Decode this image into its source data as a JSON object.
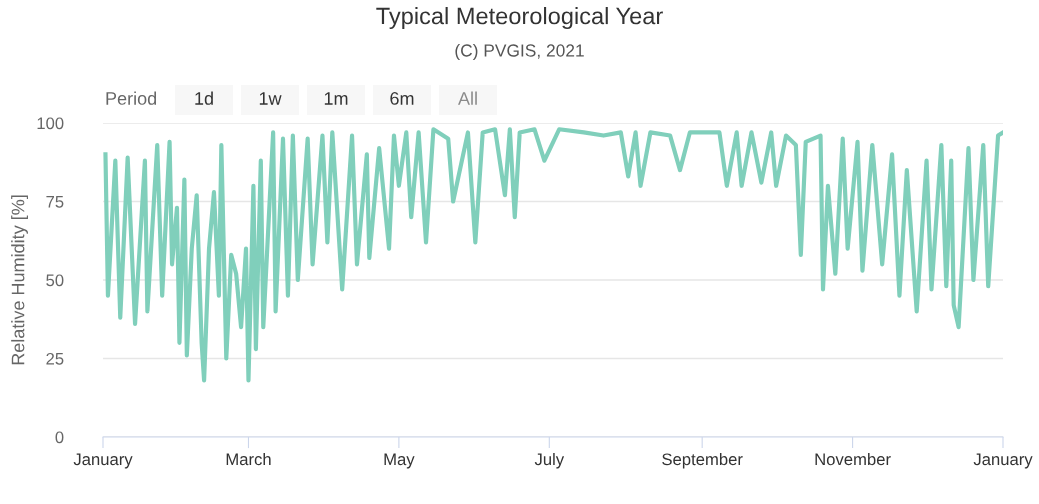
{
  "chart_data": {
    "type": "line",
    "title": "Typical Meteorological Year",
    "subtitle": "(C) PVGIS, 2021",
    "ylabel": "Relative Humidity [%]",
    "annotations": [
      "Period",
      "1d",
      "1w",
      "1m",
      "6m",
      "All"
    ],
    "xlim": [
      "2021-01-01",
      "2022-01-01"
    ],
    "xticks": [
      {
        "value": "2021-01-01",
        "label": "January"
      },
      {
        "value": "2021-03-01",
        "label": "March"
      },
      {
        "value": "2021-05-01",
        "label": "May"
      },
      {
        "value": "2021-07-01",
        "label": "July"
      },
      {
        "value": "2021-09-01",
        "label": "September"
      },
      {
        "value": "2021-11-01",
        "label": "November"
      },
      {
        "value": "2022-01-01",
        "label": "January"
      }
    ],
    "ylim": [
      0,
      100
    ],
    "yticks": [
      0,
      25,
      50,
      75,
      100
    ],
    "grid": "y",
    "legend": false,
    "marker": "none",
    "line_style": "solid",
    "series": [
      {
        "color": "#80cfbb",
        "x": [
          "2021-01-02",
          "2021-01-03",
          "2021-01-06",
          "2021-01-08",
          "2021-01-11",
          "2021-01-14",
          "2021-01-18",
          "2021-01-19",
          "2021-01-23",
          "2021-01-25",
          "2021-01-28",
          "2021-01-29",
          "2021-01-31",
          "2021-02-01",
          "2021-02-03",
          "2021-02-04",
          "2021-02-06",
          "2021-02-08",
          "2021-02-10",
          "2021-02-11",
          "2021-02-13",
          "2021-02-15",
          "2021-02-17",
          "2021-02-18",
          "2021-02-20",
          "2021-02-22",
          "2021-02-24",
          "2021-02-26",
          "2021-02-28",
          "2021-03-01",
          "2021-03-03",
          "2021-03-04",
          "2021-03-06",
          "2021-03-07",
          "2021-03-11",
          "2021-03-12",
          "2021-03-15",
          "2021-03-17",
          "2021-03-19",
          "2021-03-21",
          "2021-03-25",
          "2021-03-27",
          "2021-03-31",
          "2021-04-02",
          "2021-04-04",
          "2021-04-08",
          "2021-04-12",
          "2021-04-14",
          "2021-04-18",
          "2021-04-19",
          "2021-04-23",
          "2021-04-27",
          "2021-04-29",
          "2021-05-01",
          "2021-05-04",
          "2021-05-06",
          "2021-05-09",
          "2021-05-12",
          "2021-05-15",
          "2021-05-21",
          "2021-05-23",
          "2021-05-29",
          "2021-06-01",
          "2021-06-04",
          "2021-06-09",
          "2021-06-13",
          "2021-06-15",
          "2021-06-17",
          "2021-06-19",
          "2021-06-25",
          "2021-06-29",
          "2021-07-05",
          "2021-07-15",
          "2021-07-23",
          "2021-07-30",
          "2021-08-02",
          "2021-08-05",
          "2021-08-07",
          "2021-08-11",
          "2021-08-19",
          "2021-08-23",
          "2021-08-27",
          "2021-09-08",
          "2021-09-11",
          "2021-09-15",
          "2021-09-17",
          "2021-09-21",
          "2021-09-25",
          "2021-09-29",
          "2021-10-01",
          "2021-10-05",
          "2021-10-09",
          "2021-10-11",
          "2021-10-13",
          "2021-10-19",
          "2021-10-20",
          "2021-10-22",
          "2021-10-25",
          "2021-10-28",
          "2021-10-30",
          "2021-11-03",
          "2021-11-05",
          "2021-11-09",
          "2021-11-13",
          "2021-11-17",
          "2021-11-20",
          "2021-11-23",
          "2021-11-27",
          "2021-12-01",
          "2021-12-03",
          "2021-12-07",
          "2021-12-09",
          "2021-12-11",
          "2021-12-12",
          "2021-12-14",
          "2021-12-18",
          "2021-12-20",
          "2021-12-24",
          "2021-12-26",
          "2021-12-30",
          "2022-01-01"
        ],
        "values": [
          90,
          45,
          88,
          38,
          89,
          36,
          88,
          40,
          93,
          45,
          94,
          55,
          73,
          30,
          82,
          26,
          60,
          77,
          30,
          18,
          60,
          78,
          45,
          93,
          25,
          58,
          52,
          35,
          60,
          18,
          80,
          28,
          88,
          35,
          97,
          40,
          95,
          45,
          96,
          50,
          95,
          55,
          96,
          62,
          97,
          47,
          96,
          55,
          90,
          57,
          92,
          60,
          96,
          80,
          97,
          70,
          97,
          62,
          98,
          95,
          75,
          97,
          62,
          97,
          98,
          77,
          98,
          70,
          97,
          98,
          88,
          98,
          97,
          96,
          97,
          83,
          97,
          80,
          97,
          96,
          85,
          97,
          97,
          80,
          97,
          80,
          97,
          81,
          97,
          80,
          96,
          93,
          58,
          94,
          96,
          47,
          80,
          52,
          95,
          60,
          94,
          53,
          93,
          55,
          90,
          45,
          85,
          40,
          88,
          47,
          93,
          48,
          88,
          42,
          35,
          92,
          50,
          93,
          48,
          96,
          97
        ]
      }
    ]
  }
}
